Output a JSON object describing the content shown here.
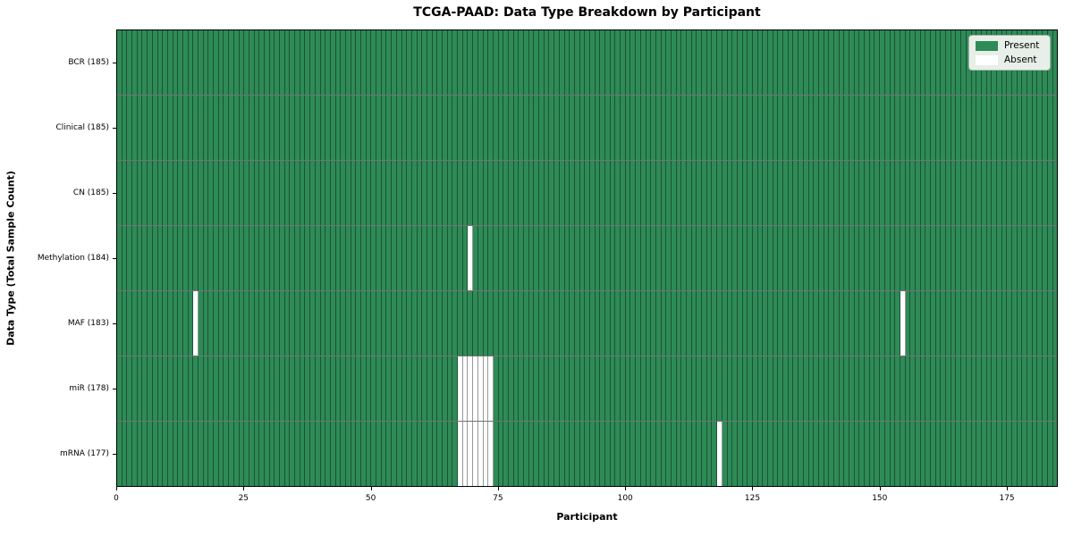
{
  "chart_data": {
    "type": "heatmap",
    "title": "TCGA-PAAD: Data Type Breakdown by Participant",
    "xlabel": "Participant",
    "ylabel": "Data Type (Total Sample Count)",
    "x_ticks": [
      0,
      25,
      50,
      75,
      100,
      125,
      150,
      175
    ],
    "x_range": [
      0,
      185
    ],
    "n_participants": 185,
    "grid": "cell-borders",
    "legend_position": "upper-right",
    "colors": {
      "present": "#2e8b57",
      "absent": "#ffffff"
    },
    "legend": [
      {
        "label": "Present",
        "key": "present"
      },
      {
        "label": "Absent",
        "key": "absent"
      }
    ],
    "rows": [
      {
        "label": "BCR (185)",
        "data_type": "BCR",
        "total_samples": 185,
        "absent_participants": []
      },
      {
        "label": "Clinical (185)",
        "data_type": "Clinical",
        "total_samples": 185,
        "absent_participants": []
      },
      {
        "label": "CN (185)",
        "data_type": "CN",
        "total_samples": 185,
        "absent_participants": []
      },
      {
        "label": "Methylation (184)",
        "data_type": "Methylation",
        "total_samples": 184,
        "absent_participants": [
          69
        ]
      },
      {
        "label": "MAF (183)",
        "data_type": "MAF",
        "total_samples": 183,
        "absent_participants": [
          15,
          154
        ]
      },
      {
        "label": "miR (178)",
        "data_type": "miR",
        "total_samples": 178,
        "absent_participants": [
          67,
          68,
          69,
          70,
          71,
          72,
          73
        ]
      },
      {
        "label": "mRNA (177)",
        "data_type": "mRNA",
        "total_samples": 177,
        "absent_participants": [
          67,
          68,
          69,
          70,
          71,
          72,
          73,
          118
        ]
      }
    ]
  }
}
